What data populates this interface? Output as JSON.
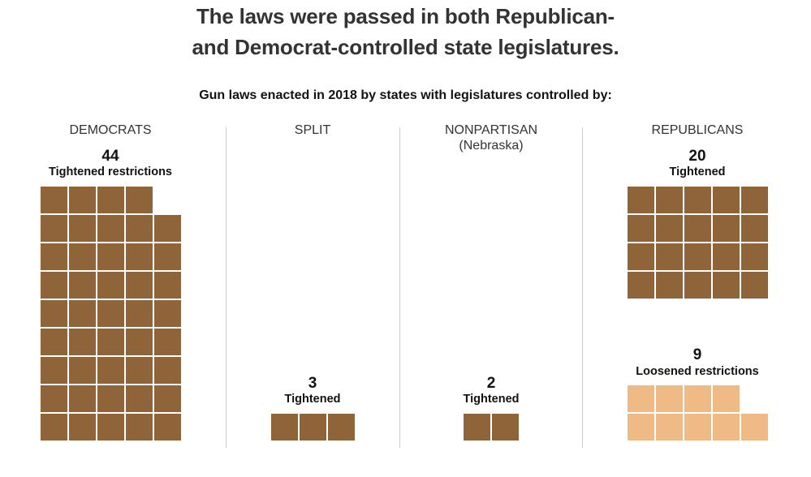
{
  "header": {
    "title_line1": "The laws were passed in both Republican-",
    "title_line2": "and Democrat-controlled state legislatures.",
    "subtitle": "Gun laws enacted in 2018 by states with legislatures controlled by:"
  },
  "colors": {
    "tightened": "#8f6438",
    "loosened": "#f0ba87",
    "divider": "#cccccc"
  },
  "groups": [
    {
      "name": "DEMOCRATS",
      "note": "",
      "tightened_count": "44",
      "tightened_label": "Tightened restrictions"
    },
    {
      "name": "SPLIT",
      "note": "",
      "tightened_count": "3",
      "tightened_label": "Tightened"
    },
    {
      "name": "NONPARTISAN",
      "note": "(Nebraska)",
      "tightened_count": "2",
      "tightened_label": "Tightened"
    },
    {
      "name": "REPUBLICANS",
      "note": "",
      "tightened_count": "20",
      "tightened_label": "Tightened",
      "loosened_count": "9",
      "loosened_label": "Loosened restrictions"
    }
  ],
  "chart_data": {
    "type": "waffle",
    "title": "The laws were passed in both Republican- and Democrat-controlled state legislatures.",
    "subtitle": "Gun laws enacted in 2018 by states with legislatures controlled by:",
    "unit": "one square = one law",
    "categories": [
      "Democrats",
      "Split",
      "Nonpartisan (Nebraska)",
      "Republicans"
    ],
    "series": [
      {
        "name": "Tightened restrictions",
        "values": [
          44,
          3,
          2,
          20
        ]
      },
      {
        "name": "Loosened restrictions",
        "values": [
          0,
          0,
          0,
          9
        ]
      }
    ],
    "columns_per_row": 5
  }
}
